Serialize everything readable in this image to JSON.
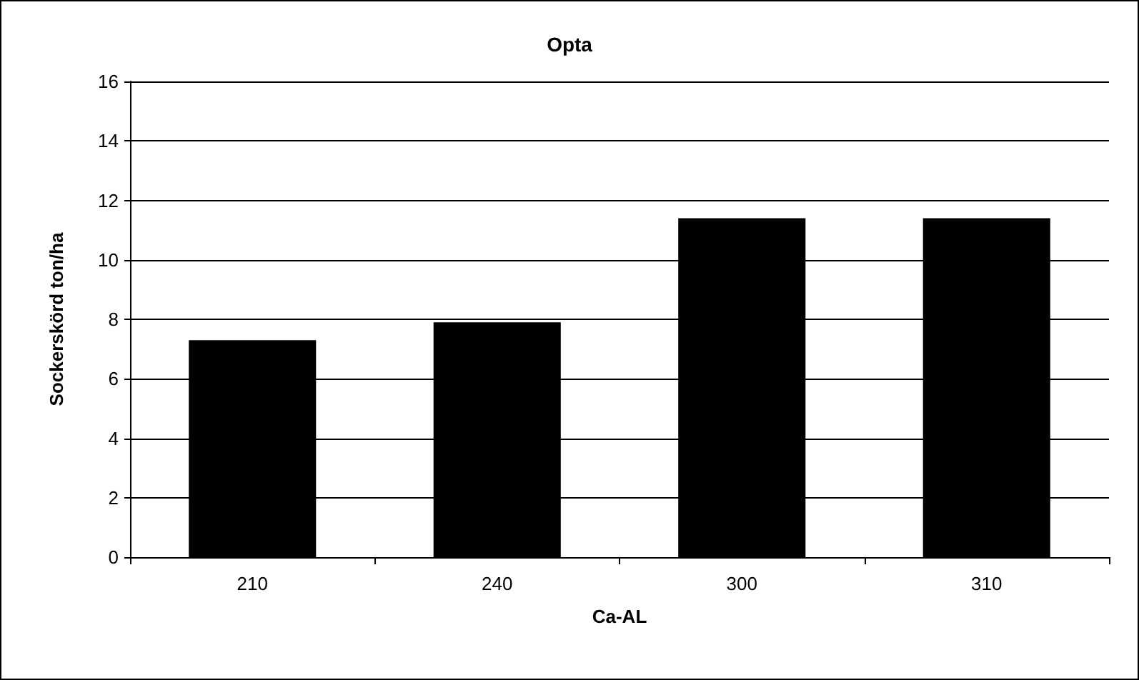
{
  "chart_data": {
    "type": "bar",
    "title": "Opta",
    "xlabel": "Ca-AL",
    "ylabel": "Sockerskörd ton/ha",
    "categories": [
      "210",
      "240",
      "300",
      "310"
    ],
    "values": [
      7.3,
      7.9,
      11.4,
      11.4
    ],
    "color": "#000000",
    "ylim": [
      0,
      16
    ],
    "yticks": [
      0,
      2,
      4,
      6,
      8,
      10,
      12,
      14,
      16
    ],
    "grid": "y"
  }
}
